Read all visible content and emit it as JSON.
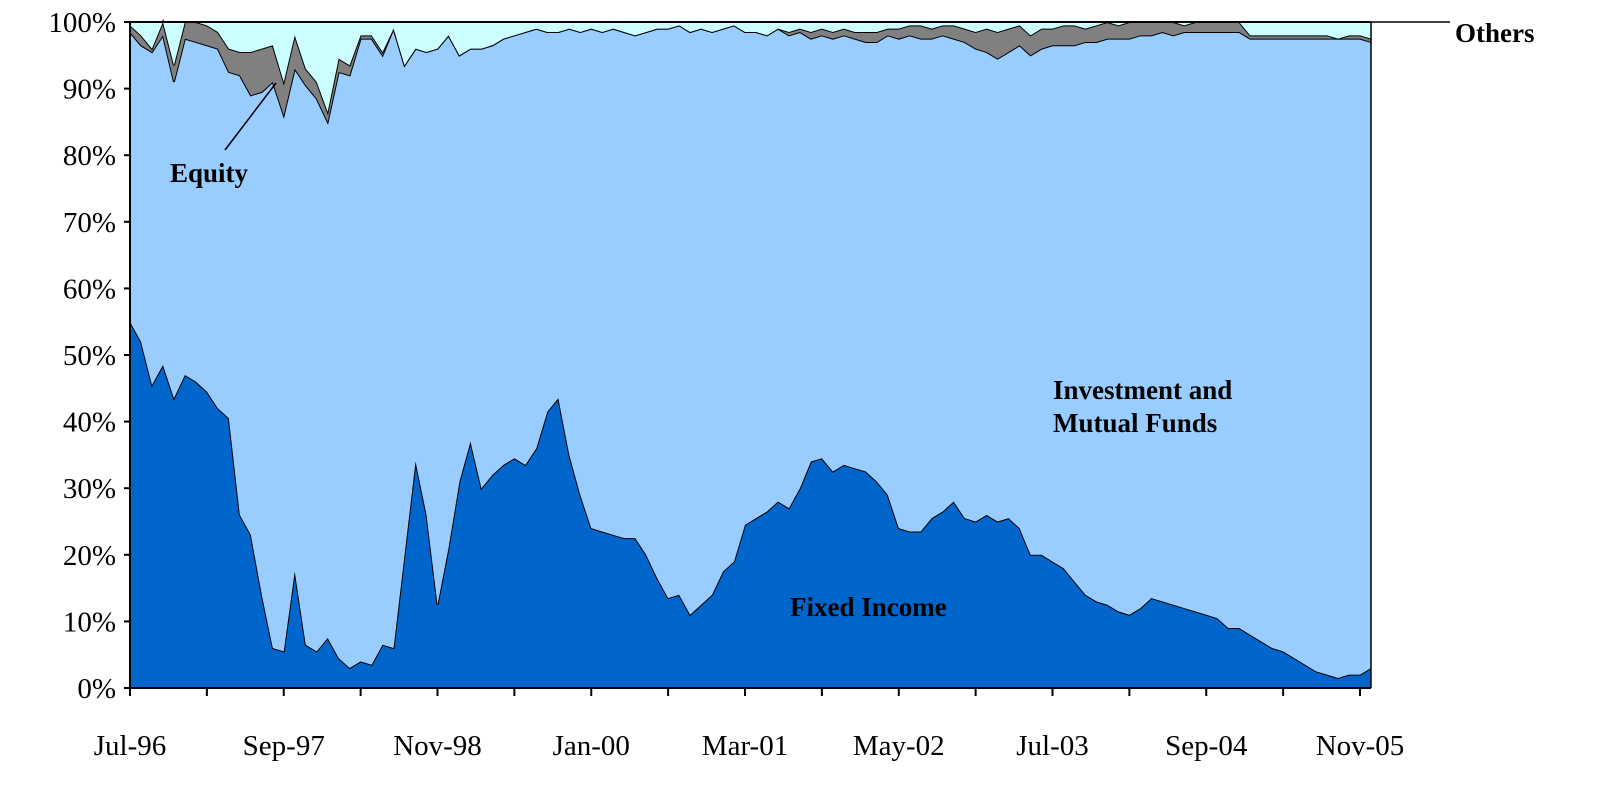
{
  "chart_data": {
    "type": "stacked-area",
    "categories": [
      "Jul-96",
      null,
      null,
      null,
      null,
      null,
      null,
      null,
      null,
      null,
      null,
      null,
      null,
      null,
      "Sep-97",
      null,
      null,
      null,
      null,
      null,
      null,
      null,
      null,
      null,
      null,
      null,
      null,
      null,
      "Nov-98",
      null,
      null,
      null,
      null,
      null,
      null,
      null,
      null,
      null,
      null,
      null,
      null,
      null,
      "Jan-00",
      null,
      null,
      null,
      null,
      null,
      null,
      null,
      null,
      null,
      null,
      null,
      null,
      null,
      "Mar-01",
      null,
      null,
      null,
      null,
      null,
      null,
      null,
      null,
      null,
      null,
      null,
      null,
      null,
      "May-02",
      null,
      null,
      null,
      null,
      null,
      null,
      null,
      null,
      null,
      null,
      null,
      null,
      null,
      "Jul-03",
      null,
      null,
      null,
      null,
      null,
      null,
      null,
      null,
      null,
      null,
      null,
      null,
      null,
      "Sep-04",
      null,
      null,
      null,
      null,
      null,
      null,
      null,
      null,
      null,
      null,
      null,
      null,
      null,
      "Nov-05",
      null
    ],
    "series": [
      {
        "name": "Fixed Income",
        "color": "#0066cc",
        "values": [
          55,
          52,
          45.5,
          48.5,
          43.5,
          47,
          46,
          44.5,
          42,
          40.5,
          26,
          23,
          14,
          6,
          5.5,
          17.5,
          6.5,
          5.5,
          7.5,
          4.5,
          3,
          4,
          3.5,
          6.5,
          6,
          20,
          34,
          26,
          12.5,
          21,
          31,
          37,
          30,
          32,
          33.5,
          34.5,
          33.5,
          36,
          41.5,
          43.5,
          35,
          29,
          24,
          23.5,
          23,
          22.5,
          22.5,
          20,
          16.5,
          13.5,
          14,
          11,
          12.5,
          14,
          17.5,
          19,
          24.5,
          25.5,
          26.5,
          28,
          27,
          30,
          34,
          34.5,
          32.5,
          33.5,
          33,
          32.5,
          31,
          29,
          24,
          23.5,
          23.5,
          25.5,
          26.5,
          28,
          25.5,
          25,
          26,
          25,
          25.5,
          24,
          20,
          20,
          19,
          18,
          16,
          14,
          13,
          12.5,
          11.5,
          11,
          12,
          13.5,
          13,
          12.5,
          12,
          11.5,
          11,
          10.5,
          9,
          9,
          8,
          7,
          6,
          5.5,
          4.5,
          3.5,
          2.5,
          2,
          1.5,
          2,
          2,
          3
        ]
      },
      {
        "name": "Investment and Mutual Funds",
        "color": "#99ccff",
        "values": [
          43.5,
          44.5,
          50,
          49.5,
          47.5,
          50.5,
          51,
          52,
          54,
          52,
          66,
          66,
          75.5,
          85,
          80.5,
          75.5,
          84,
          83,
          77.5,
          88,
          89,
          93.5,
          94,
          88.5,
          93,
          73.5,
          62,
          69.5,
          83.5,
          77,
          64,
          59,
          66,
          64.5,
          64,
          63.5,
          65,
          63,
          57,
          55,
          64,
          69.5,
          75,
          75,
          76,
          76,
          75.5,
          78.5,
          82.5,
          85.5,
          85.5,
          87.5,
          86.5,
          84.5,
          81.5,
          80.5,
          74,
          73,
          71.5,
          71,
          71,
          68.5,
          63.5,
          63.5,
          65,
          64.5,
          64.5,
          64.5,
          66,
          69,
          73.5,
          74.5,
          74,
          72,
          71.5,
          69.5,
          71.5,
          71,
          69.5,
          69.5,
          70,
          72.5,
          75,
          76,
          77.5,
          78.5,
          80.5,
          83,
          84,
          85,
          86,
          86.5,
          86,
          84.5,
          85.5,
          85.5,
          86.5,
          87,
          87.5,
          88,
          89.5,
          89.5,
          89.5,
          90.5,
          91.5,
          92,
          93,
          94,
          95,
          95.5,
          96,
          95.5,
          95.5,
          94
        ]
      },
      {
        "name": "Equity",
        "color": "#808080",
        "values": [
          1,
          1.5,
          0.5,
          2,
          2.5,
          2.5,
          3,
          3,
          2.5,
          3.5,
          3.5,
          6.5,
          6.5,
          5.5,
          5,
          5,
          2.5,
          2.5,
          1.5,
          2,
          1.5,
          0.5,
          0.5,
          0.5,
          0,
          0,
          0,
          0,
          0,
          0,
          0,
          0,
          0,
          0,
          0,
          0,
          0,
          0,
          0,
          0,
          0,
          0,
          0,
          0,
          0,
          0,
          0,
          0,
          0,
          0,
          0,
          0,
          0,
          0,
          0,
          0,
          0,
          0,
          0,
          0,
          0.5,
          0.5,
          1,
          1,
          1,
          1,
          1,
          1.5,
          1.5,
          1,
          1.5,
          1.5,
          2,
          1.5,
          1.5,
          2,
          2,
          2.5,
          3.5,
          4,
          3.5,
          3,
          3,
          3,
          2.5,
          3,
          3,
          2,
          2.5,
          2.5,
          2,
          2.5,
          2,
          2,
          1.5,
          2,
          1,
          1.5,
          1.5,
          1.5,
          1.5,
          1.5,
          0.5,
          0.5,
          0.5,
          0.5,
          0.5,
          0.5,
          0.5,
          0.5,
          0,
          0.5,
          0.5,
          0.5
        ]
      },
      {
        "name": "Others",
        "color": "#ccffff",
        "values": [
          0.5,
          2,
          4,
          0,
          6.5,
          0,
          0,
          0.5,
          1.5,
          4,
          4.5,
          4.5,
          4,
          3.5,
          9,
          2,
          7,
          9,
          13.5,
          5.5,
          6.5,
          2,
          2,
          4.5,
          1,
          6.5,
          4,
          4.5,
          4,
          2,
          5,
          4,
          4,
          3.5,
          2.5,
          2,
          1.5,
          1,
          1.5,
          1.5,
          1,
          1.5,
          1,
          1.5,
          1,
          1.5,
          2,
          1.5,
          1,
          1,
          0.5,
          1.5,
          1,
          1.5,
          1,
          0.5,
          1.5,
          1.5,
          2,
          1,
          1.5,
          1,
          1.5,
          1,
          1.5,
          1,
          1.5,
          1.5,
          1.5,
          1,
          1,
          0.5,
          0.5,
          1,
          0.5,
          0.5,
          1,
          1.5,
          1,
          1.5,
          1,
          0.5,
          2,
          1,
          1,
          0.5,
          0.5,
          1,
          0.5,
          0,
          0.5,
          0,
          0,
          0,
          0,
          0,
          0.5,
          0,
          0,
          0,
          0,
          0,
          2,
          2,
          2,
          2,
          2,
          2,
          2,
          2,
          2.5,
          2,
          2,
          2.5
        ]
      }
    ],
    "ylim": [
      0,
      100
    ],
    "yticks": [
      {
        "value": 0,
        "label": "0%"
      },
      {
        "value": 10,
        "label": "10%"
      },
      {
        "value": 20,
        "label": "20%"
      },
      {
        "value": 30,
        "label": "30%"
      },
      {
        "value": 40,
        "label": "40%"
      },
      {
        "value": 50,
        "label": "50%"
      },
      {
        "value": 60,
        "label": "60%"
      },
      {
        "value": 70,
        "label": "70%"
      },
      {
        "value": 80,
        "label": "80%"
      },
      {
        "value": 90,
        "label": "90%"
      },
      {
        "value": 100,
        "label": "100%"
      }
    ],
    "grid": false
  }
}
